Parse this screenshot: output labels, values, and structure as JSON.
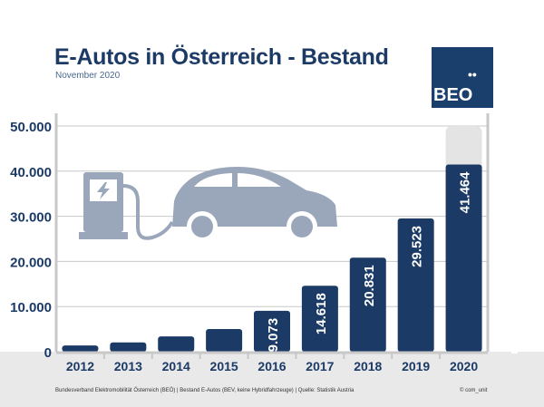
{
  "header": {
    "title": "E-Autos in Österreich - Bestand",
    "subtitle": "November 2020"
  },
  "logo": {
    "text": "BEO",
    "dots": "••"
  },
  "footer": {
    "source": "Bundesverband Elektromobilität Österreich (BEÖ) | Bestand E-Autos (BEV, keine Hybridfahrzeuge) | Quelle: Statistik Austria",
    "copyright": "© com_unit"
  },
  "colors": {
    "bar": "#1b3a66",
    "axis_label": "#1b3a66",
    "grid": "#c8c8c8",
    "icon": "#9aa7bb",
    "band": "#e9e9e9"
  },
  "chart_data": {
    "type": "bar",
    "categories": [
      "2012",
      "2013",
      "2014",
      "2015",
      "2016",
      "2017",
      "2018",
      "2019",
      "2020"
    ],
    "values": [
      1389,
      2070,
      3386,
      5032,
      9073,
      14618,
      20831,
      29523,
      41464
    ],
    "data_labels": [
      "",
      "",
      "",
      "",
      "9.073",
      "14.618",
      "20.831",
      "29.523",
      "41.464"
    ],
    "ylim": [
      0,
      50000
    ],
    "yticks": [
      0,
      10000,
      20000,
      30000,
      40000,
      50000
    ],
    "ytick_labels": [
      "0",
      "10.000",
      "20.000",
      "30.000",
      "40.000",
      "50.000"
    ],
    "grid": true,
    "xlabel": "",
    "ylabel": ""
  }
}
